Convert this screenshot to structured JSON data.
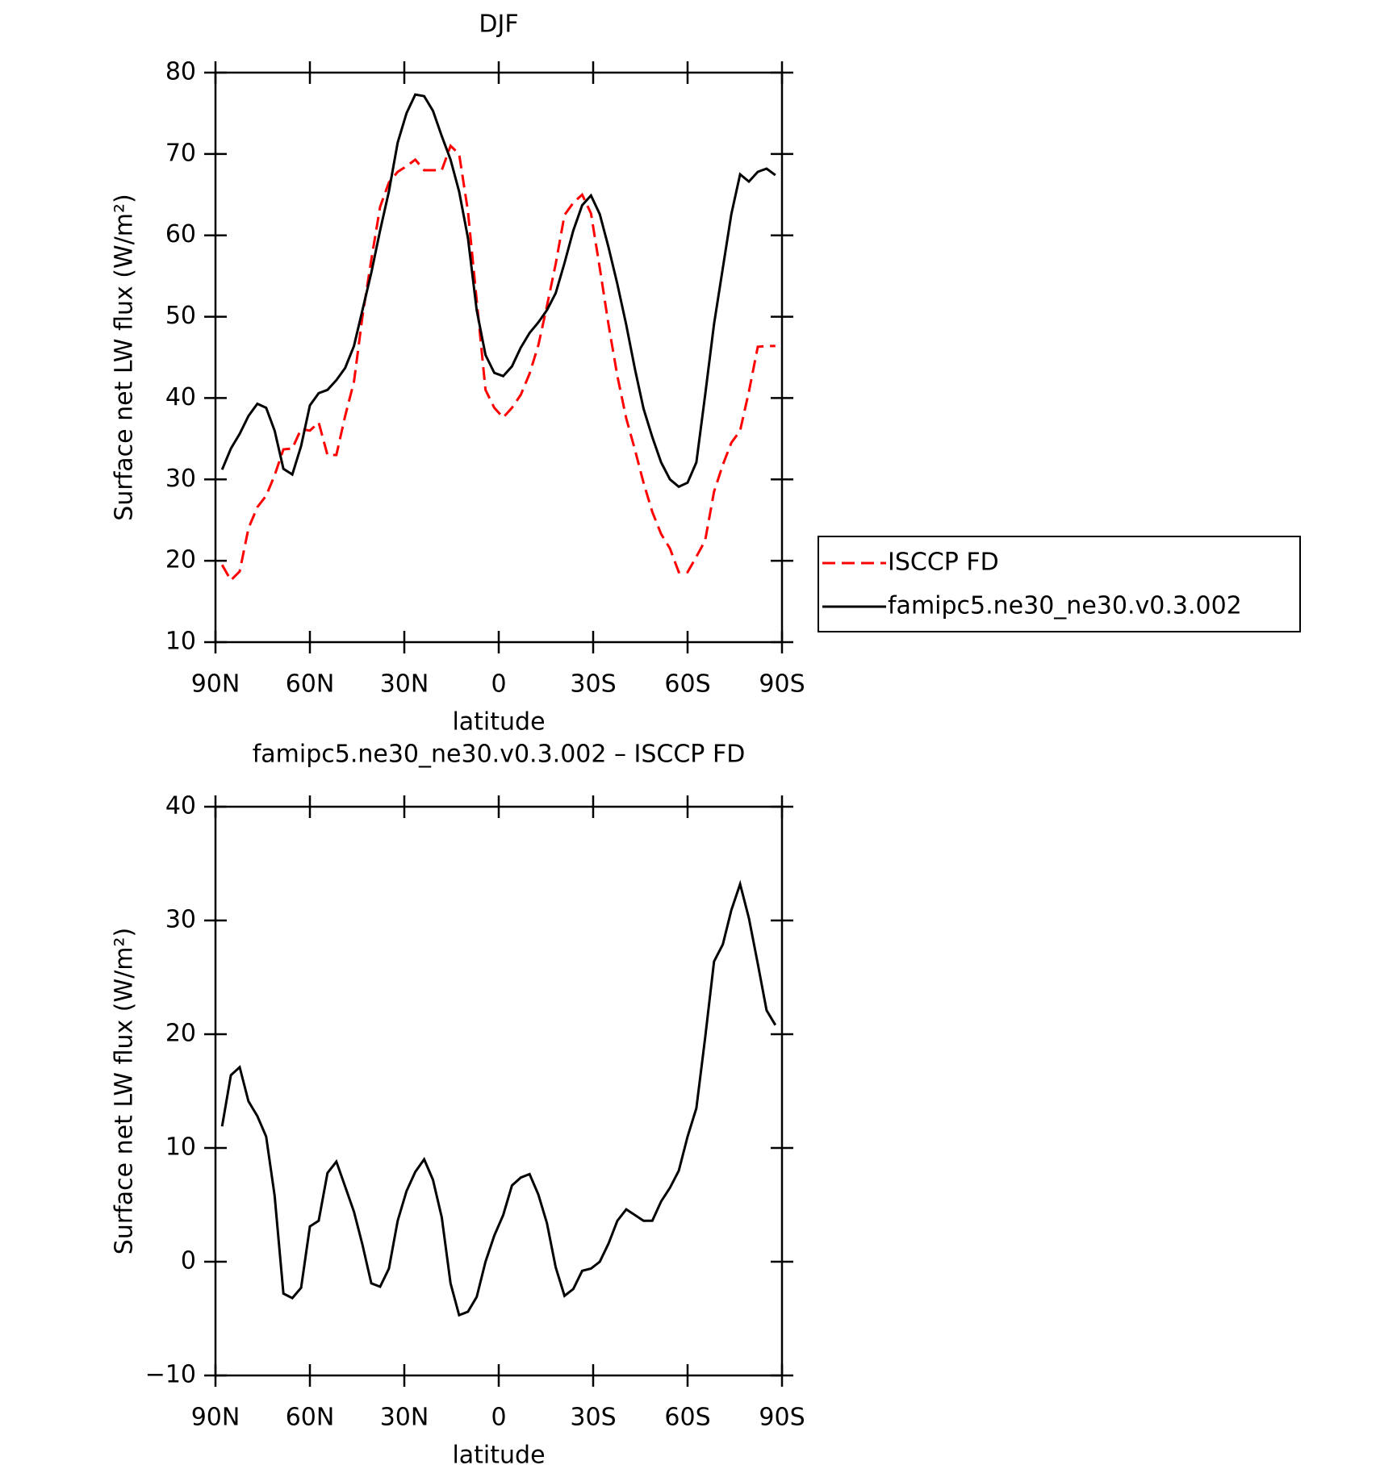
{
  "chart_data": [
    {
      "type": "line",
      "title": "DJF",
      "xlabel": "latitude",
      "ylabel": "Surface net LW flux (W/m²)",
      "x": [
        87.9,
        85.1,
        82.3,
        79.5,
        76.7,
        73.9,
        71.2,
        68.4,
        65.6,
        62.8,
        60.0,
        57.2,
        54.4,
        51.6,
        48.8,
        46.0,
        43.3,
        40.5,
        37.7,
        34.9,
        32.1,
        29.3,
        26.5,
        23.7,
        20.9,
        18.1,
        15.3,
        12.6,
        9.8,
        7.0,
        4.2,
        1.4,
        -1.4,
        -4.2,
        -7.0,
        -9.8,
        -12.6,
        -15.3,
        -18.1,
        -20.9,
        -23.7,
        -26.5,
        -29.3,
        -32.1,
        -34.9,
        -37.7,
        -40.5,
        -43.3,
        -46.0,
        -48.8,
        -51.6,
        -54.4,
        -57.2,
        -60.0,
        -62.8,
        -65.6,
        -68.4,
        -71.2,
        -73.9,
        -76.7,
        -79.5,
        -82.3,
        -85.1,
        -87.9
      ],
      "xlim": [
        90,
        -90
      ],
      "xticks": [
        {
          "value": 90,
          "label": "90N"
        },
        {
          "value": 60,
          "label": "60N"
        },
        {
          "value": 30,
          "label": "30N"
        },
        0,
        {
          "value": -30,
          "label": "30S"
        },
        {
          "value": -60,
          "label": "60S"
        },
        {
          "value": -90,
          "label": "90S"
        }
      ],
      "ylim": [
        10,
        80
      ],
      "yticks": [
        10,
        20,
        30,
        40,
        50,
        60,
        70,
        80
      ],
      "legend": "right",
      "series": [
        {
          "name": "ISCCP FD",
          "color": "#ff0000",
          "linestyle": "dashed",
          "values": [
            19.5,
            17.6,
            18.7,
            24,
            26.6,
            28,
            30.5,
            33.7,
            33.8,
            36.2,
            36,
            37,
            33,
            33,
            37.8,
            42,
            50,
            57,
            63.5,
            66.5,
            67.8,
            68.5,
            69.3,
            68,
            68,
            68,
            71,
            70,
            63,
            52,
            41,
            38.8,
            37.6,
            38.8,
            40.4,
            43,
            46.5,
            51.3,
            56.5,
            62.5,
            64,
            65,
            62.7,
            56,
            49,
            42.7,
            37.5,
            33.6,
            29.6,
            26,
            23.3,
            21.5,
            18.6,
            18.6,
            20.5,
            22.5,
            28.5,
            31.8,
            34.5,
            36,
            40.8,
            46.3,
            46.4,
            46.4
          ]
        },
        {
          "name": "famipc5.ne30_ne30.v0.3.002",
          "color": "#000000",
          "linestyle": "solid",
          "values": [
            31.2,
            33.8,
            35.6,
            37.8,
            39.3,
            38.8,
            36,
            31.3,
            30.6,
            34.1,
            39.1,
            40.6,
            41,
            42.2,
            43.7,
            46.4,
            50.8,
            55.4,
            60.6,
            65.4,
            71.4,
            75,
            77.3,
            77.1,
            75.3,
            72.2,
            69.3,
            65.4,
            59.7,
            50.8,
            45.3,
            43.1,
            42.7,
            43.9,
            46.2,
            48,
            49.3,
            50.8,
            52.9,
            56.6,
            60.6,
            63.7,
            64.9,
            62.6,
            58.5,
            54,
            49,
            43.5,
            38.7,
            35.2,
            32.1,
            30,
            29.1,
            29.6,
            32.1,
            40.4,
            49.1,
            56,
            62.6,
            67.5,
            66.6,
            67.8,
            68.2,
            67.4
          ]
        }
      ]
    },
    {
      "type": "line",
      "title": "famipc5.ne30_ne30.v0.3.002 – ISCCP FD",
      "xlabel": "latitude",
      "ylabel": "Surface net LW flux (W/m²)",
      "x": [
        87.9,
        85.1,
        82.3,
        79.5,
        76.7,
        73.9,
        71.2,
        68.4,
        65.6,
        62.8,
        60.0,
        57.2,
        54.4,
        51.6,
        48.8,
        46.0,
        43.3,
        40.5,
        37.7,
        34.9,
        32.1,
        29.3,
        26.5,
        23.7,
        20.9,
        18.1,
        15.3,
        12.6,
        9.8,
        7.0,
        4.2,
        1.4,
        -1.4,
        -4.2,
        -7.0,
        -9.8,
        -12.6,
        -15.3,
        -18.1,
        -20.9,
        -23.7,
        -26.5,
        -29.3,
        -32.1,
        -34.9,
        -37.7,
        -40.5,
        -43.3,
        -46.0,
        -48.8,
        -51.6,
        -54.4,
        -57.2,
        -60.0,
        -62.8,
        -65.6,
        -68.4,
        -71.2,
        -73.9,
        -76.7,
        -79.5,
        -82.3,
        -85.1,
        -87.9
      ],
      "xlim": [
        90,
        -90
      ],
      "xticks": [
        {
          "value": 90,
          "label": "90N"
        },
        {
          "value": 60,
          "label": "60N"
        },
        {
          "value": 30,
          "label": "30N"
        },
        0,
        {
          "value": -30,
          "label": "30S"
        },
        {
          "value": -60,
          "label": "60S"
        },
        {
          "value": -90,
          "label": "90S"
        }
      ],
      "ylim": [
        -10,
        40
      ],
      "yticks": [
        {
          "value": -10,
          "label": "−10"
        },
        0,
        10,
        20,
        30,
        40
      ],
      "series": [
        {
          "color": "#000000",
          "linestyle": "solid",
          "values": [
            11.9,
            16.4,
            17.1,
            14.1,
            12.8,
            11,
            5.8,
            -2.8,
            -3.2,
            -2.3,
            3.1,
            3.6,
            7.8,
            8.8,
            6.6,
            4.4,
            1.5,
            -1.9,
            -2.2,
            -0.6,
            3.6,
            6.2,
            7.9,
            9,
            7.2,
            3.9,
            -1.9,
            -4.7,
            -4.4,
            -3.1,
            0,
            2.3,
            4.1,
            6.7,
            7.4,
            7.7,
            5.9,
            3.4,
            -0.5,
            -3,
            -2.4,
            -0.8,
            -0.6,
            0,
            1.6,
            3.6,
            4.6,
            4.1,
            3.6,
            3.6,
            5.3,
            6.5,
            8,
            11,
            13.5,
            19.7,
            26.4,
            27.9,
            30.9,
            33.2,
            30.2,
            26.2,
            22.1,
            20.8
          ]
        }
      ]
    }
  ]
}
